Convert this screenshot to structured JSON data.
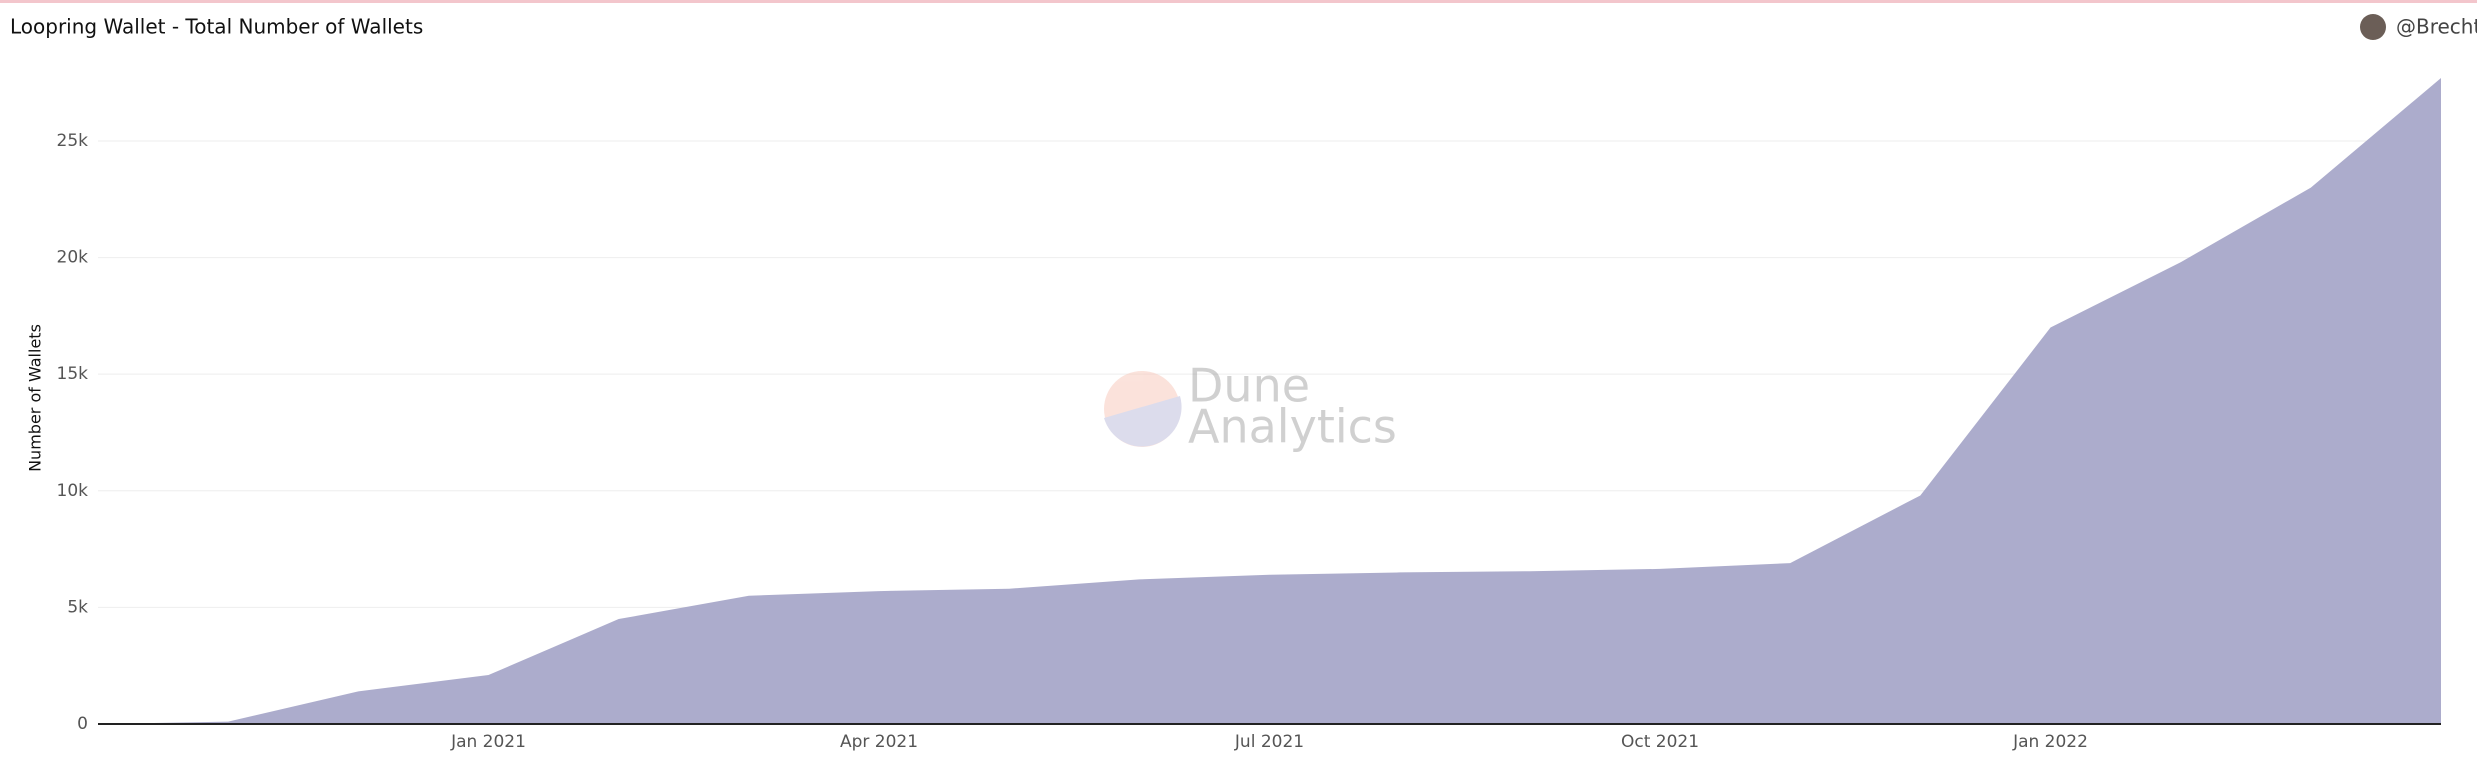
{
  "chart_data": {
    "type": "area",
    "title": "Loopring Wallet - Total Number of Wallets",
    "author": "@Brecht",
    "watermark": [
      "Dune",
      "Analytics"
    ],
    "y_label": "Number of Wallets",
    "color": "#a8a8c9",
    "x": [
      "2020-10",
      "2020-11",
      "2020-12",
      "2021-01",
      "2021-02",
      "2021-03",
      "2021-04",
      "2021-05",
      "2021-06",
      "2021-07",
      "2021-08",
      "2021-09",
      "2021-10",
      "2021-11",
      "2021-12",
      "2022-01",
      "2022-02",
      "2022-03",
      "2022-04"
    ],
    "values": [
      0,
      100,
      1400,
      2100,
      4500,
      5500,
      5700,
      5800,
      6200,
      6400,
      6500,
      6550,
      6650,
      6900,
      9800,
      17000,
      19800,
      23000,
      27700
    ],
    "xlim": [
      "2020-10",
      "2022-04"
    ],
    "xticks": [
      {
        "value": "2021-01",
        "label": "Jan 2021"
      },
      {
        "value": "2021-04",
        "label": "Apr 2021"
      },
      {
        "value": "2021-07",
        "label": "Jul 2021"
      },
      {
        "value": "2021-10",
        "label": "Oct 2021"
      },
      {
        "value": "2022-01",
        "label": "Jan 2022"
      }
    ],
    "ylim": [
      0,
      28000
    ],
    "yticks": [
      0,
      {
        "value": 5000,
        "label": "5k"
      },
      {
        "value": 10000,
        "label": "10k"
      },
      {
        "value": 15000,
        "label": "15k"
      },
      {
        "value": 20000,
        "label": "20k"
      },
      {
        "value": 25000,
        "label": "25k"
      }
    ],
    "grid": true
  }
}
